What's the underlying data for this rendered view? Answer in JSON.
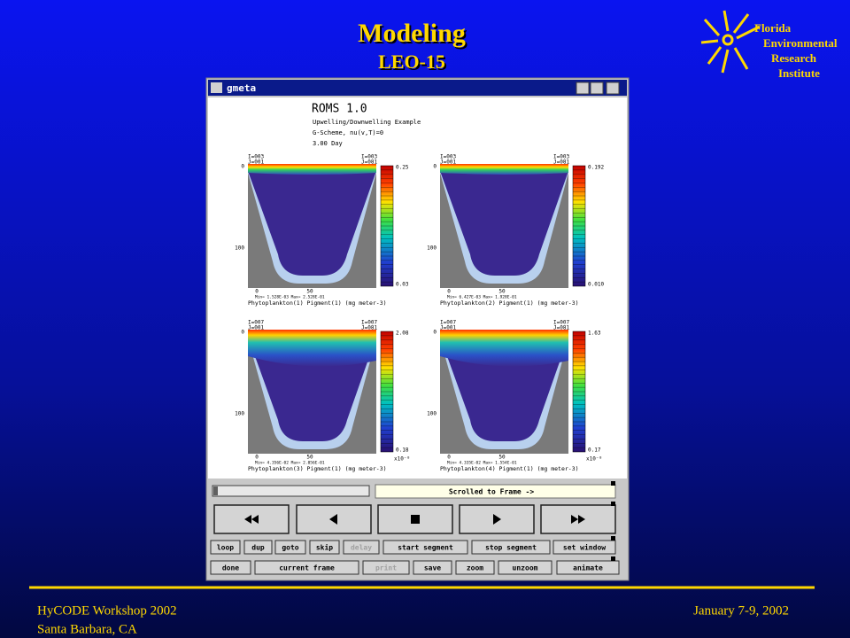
{
  "header": {
    "title": "Modeling",
    "subtitle": "LEO-15"
  },
  "logo": {
    "lines": [
      "Florida",
      "Environmental",
      "Research",
      "Institute"
    ]
  },
  "window": {
    "title": "gmeta",
    "plot_header": {
      "title": "ROMS 1.0",
      "lines": [
        "Upwelling/Downwelling Example",
        "G-Scheme, nu(v,T)=0",
        "3.00 Day"
      ]
    },
    "panels": [
      {
        "corner_left": [
          "I=003",
          "J=001"
        ],
        "corner_right": [
          "I=003",
          "J=081"
        ],
        "yticks": [
          "0",
          "100"
        ],
        "xticks": [
          "0",
          "50"
        ],
        "colorbar": [
          "0.25",
          "0.03"
        ],
        "minmax": "Min= 1.528E-03 Max= 2.528E-01",
        "caption": "Phytoplankton(1) Pigment(1) (mg meter-3)"
      },
      {
        "corner_left": [
          "I=003",
          "J=001"
        ],
        "corner_right": [
          "I=003",
          "J=081"
        ],
        "yticks": [
          "0",
          "100"
        ],
        "xticks": [
          "0",
          "50"
        ],
        "colorbar": [
          "0.192",
          "0.010"
        ],
        "minmax": "Min= 6.427E-03 Max= 1.928E-01",
        "caption": "Phytoplankton(2) Pigment(1) (mg meter-3)"
      },
      {
        "corner_left": [
          "I=007",
          "J=001"
        ],
        "corner_right": [
          "I=007",
          "J=081"
        ],
        "yticks": [
          "0",
          "100"
        ],
        "xticks": [
          "0",
          "50"
        ],
        "colorbar": [
          "2.08",
          "0.18"
        ],
        "unit": "x10⁻⁸",
        "minmax": "Min= 4.356E-02 Max= 2.056E-01",
        "caption": "Phytoplankton(3) Pigment(1) (mg meter-3)"
      },
      {
        "corner_left": [
          "I=007",
          "J=001"
        ],
        "corner_right": [
          "I=007",
          "J=081"
        ],
        "yticks": [
          "0",
          "100"
        ],
        "xticks": [
          "0",
          "50"
        ],
        "colorbar": [
          "1.63",
          "0.17"
        ],
        "unit": "x10⁻⁸",
        "minmax": "Min= 4.335E-02 Max= 1.554E-01",
        "caption": "Phytoplankton(4) Pigment(1) (mg meter-3)"
      }
    ],
    "status": "Scrolled to Frame ->",
    "row2": [
      "loop",
      "dup",
      "goto",
      "skip",
      "delay",
      "start segment",
      "stop segment",
      "set window"
    ],
    "row3": [
      "done",
      "current frame",
      "print",
      "save",
      "zoom",
      "unzoom",
      "animate"
    ]
  },
  "footer": {
    "left": [
      "HyCODE Workshop 2002",
      "Santa Barbara, CA"
    ],
    "right": "January 7-9, 2002"
  }
}
